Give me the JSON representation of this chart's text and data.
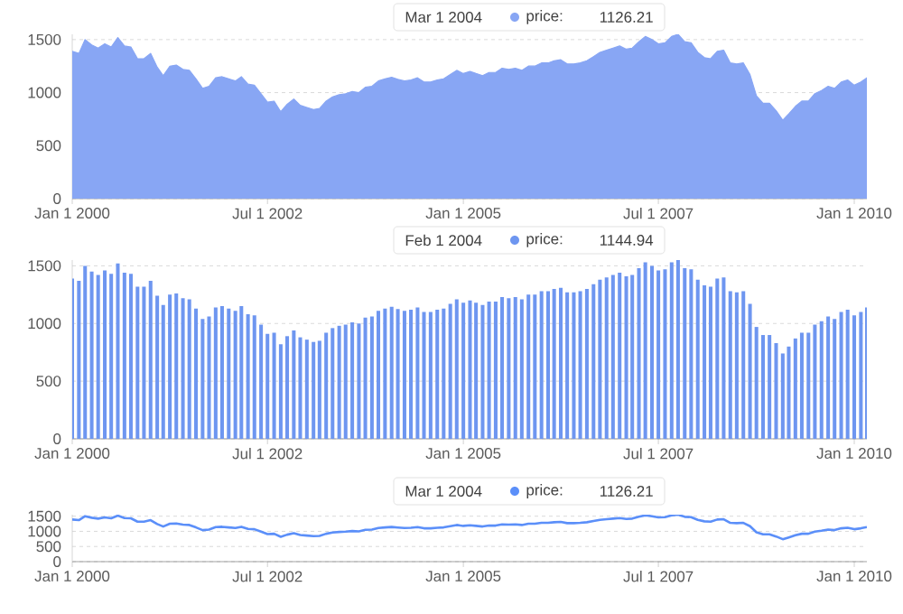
{
  "chart_data": [
    {
      "type": "area",
      "x": [
        "2000-01",
        "2000-02",
        "2000-03",
        "2000-04",
        "2000-05",
        "2000-06",
        "2000-07",
        "2000-08",
        "2000-09",
        "2000-10",
        "2000-11",
        "2000-12",
        "2001-01",
        "2001-02",
        "2001-03",
        "2001-04",
        "2001-05",
        "2001-06",
        "2001-07",
        "2001-08",
        "2001-09",
        "2001-10",
        "2001-11",
        "2001-12",
        "2002-01",
        "2002-02",
        "2002-03",
        "2002-04",
        "2002-05",
        "2002-06",
        "2002-07",
        "2002-08",
        "2002-09",
        "2002-10",
        "2002-11",
        "2002-12",
        "2003-01",
        "2003-02",
        "2003-03",
        "2003-04",
        "2003-05",
        "2003-06",
        "2003-07",
        "2003-08",
        "2003-09",
        "2003-10",
        "2003-11",
        "2003-12",
        "2004-01",
        "2004-02",
        "2004-03",
        "2004-04",
        "2004-05",
        "2004-06",
        "2004-07",
        "2004-08",
        "2004-09",
        "2004-10",
        "2004-11",
        "2004-12",
        "2005-01",
        "2005-02",
        "2005-03",
        "2005-04",
        "2005-05",
        "2005-06",
        "2005-07",
        "2005-08",
        "2005-09",
        "2005-10",
        "2005-11",
        "2005-12",
        "2006-01",
        "2006-02",
        "2006-03",
        "2006-04",
        "2006-05",
        "2006-06",
        "2006-07",
        "2006-08",
        "2006-09",
        "2006-10",
        "2006-11",
        "2006-12",
        "2007-01",
        "2007-02",
        "2007-03",
        "2007-04",
        "2007-05",
        "2007-06",
        "2007-07",
        "2007-08",
        "2007-09",
        "2007-10",
        "2007-11",
        "2007-12",
        "2008-01",
        "2008-02",
        "2008-03",
        "2008-04",
        "2008-05",
        "2008-06",
        "2008-07",
        "2008-08",
        "2008-09",
        "2008-10",
        "2008-11",
        "2008-12",
        "2009-01",
        "2009-02",
        "2009-03",
        "2009-04",
        "2009-05",
        "2009-06",
        "2009-07",
        "2009-08",
        "2009-09",
        "2009-10",
        "2009-11",
        "2009-12",
        "2010-01",
        "2010-02",
        "2010-03"
      ],
      "series": [
        {
          "name": "price:",
          "color": "#88a6f4",
          "values": [
            1390,
            1370,
            1500,
            1450,
            1420,
            1460,
            1430,
            1520,
            1440,
            1430,
            1320,
            1320,
            1370,
            1240,
            1160,
            1250,
            1260,
            1220,
            1210,
            1130,
            1040,
            1060,
            1140,
            1150,
            1130,
            1110,
            1150,
            1080,
            1070,
            990,
            910,
            920,
            820,
            890,
            940,
            880,
            860,
            840,
            850,
            920,
            960,
            980,
            990,
            1010,
            1000,
            1050,
            1060,
            1110,
            1130,
            1144.94,
            1126.21,
            1110,
            1120,
            1140,
            1100,
            1100,
            1120,
            1130,
            1170,
            1210,
            1180,
            1200,
            1180,
            1160,
            1190,
            1190,
            1230,
            1220,
            1230,
            1210,
            1250,
            1250,
            1280,
            1280,
            1300,
            1310,
            1270,
            1270,
            1280,
            1300,
            1340,
            1380,
            1400,
            1420,
            1440,
            1410,
            1420,
            1480,
            1530,
            1500,
            1460,
            1470,
            1530,
            1550,
            1480,
            1470,
            1380,
            1330,
            1320,
            1390,
            1400,
            1280,
            1270,
            1280,
            1170,
            970,
            900,
            900,
            830,
            740,
            800,
            870,
            920,
            920,
            990,
            1020,
            1060,
            1040,
            1100,
            1120,
            1070,
            1100,
            1140
          ]
        }
      ],
      "xlim": [
        "2000-01-01",
        "2010-03-01"
      ],
      "xticks": [
        {
          "value": "2000-01-01",
          "label": "Jan 1 2000"
        },
        {
          "value": "2002-07-01",
          "label": "Jul 1 2002"
        },
        {
          "value": "2005-01-01",
          "label": "Jan 1 2005"
        },
        {
          "value": "2007-07-01",
          "label": "Jul 1 2007"
        },
        {
          "value": "2010-01-01",
          "label": "Jan 1 2010"
        }
      ],
      "ylim": [
        0,
        1550
      ],
      "yticks": [
        0,
        500,
        1000,
        1500
      ],
      "grid": "y",
      "annotations": [
        "Mar 1 2004",
        "1126.21"
      ]
    },
    {
      "type": "bar",
      "x": [
        "2000-01",
        "2000-02",
        "2000-03",
        "2000-04",
        "2000-05",
        "2000-06",
        "2000-07",
        "2000-08",
        "2000-09",
        "2000-10",
        "2000-11",
        "2000-12",
        "2001-01",
        "2001-02",
        "2001-03",
        "2001-04",
        "2001-05",
        "2001-06",
        "2001-07",
        "2001-08",
        "2001-09",
        "2001-10",
        "2001-11",
        "2001-12",
        "2002-01",
        "2002-02",
        "2002-03",
        "2002-04",
        "2002-05",
        "2002-06",
        "2002-07",
        "2002-08",
        "2002-09",
        "2002-10",
        "2002-11",
        "2002-12",
        "2003-01",
        "2003-02",
        "2003-03",
        "2003-04",
        "2003-05",
        "2003-06",
        "2003-07",
        "2003-08",
        "2003-09",
        "2003-10",
        "2003-11",
        "2003-12",
        "2004-01",
        "2004-02",
        "2004-03",
        "2004-04",
        "2004-05",
        "2004-06",
        "2004-07",
        "2004-08",
        "2004-09",
        "2004-10",
        "2004-11",
        "2004-12",
        "2005-01",
        "2005-02",
        "2005-03",
        "2005-04",
        "2005-05",
        "2005-06",
        "2005-07",
        "2005-08",
        "2005-09",
        "2005-10",
        "2005-11",
        "2005-12",
        "2006-01",
        "2006-02",
        "2006-03",
        "2006-04",
        "2006-05",
        "2006-06",
        "2006-07",
        "2006-08",
        "2006-09",
        "2006-10",
        "2006-11",
        "2006-12",
        "2007-01",
        "2007-02",
        "2007-03",
        "2007-04",
        "2007-05",
        "2007-06",
        "2007-07",
        "2007-08",
        "2007-09",
        "2007-10",
        "2007-11",
        "2007-12",
        "2008-01",
        "2008-02",
        "2008-03",
        "2008-04",
        "2008-05",
        "2008-06",
        "2008-07",
        "2008-08",
        "2008-09",
        "2008-10",
        "2008-11",
        "2008-12",
        "2009-01",
        "2009-02",
        "2009-03",
        "2009-04",
        "2009-05",
        "2009-06",
        "2009-07",
        "2009-08",
        "2009-09",
        "2009-10",
        "2009-11",
        "2009-12",
        "2010-01",
        "2010-02",
        "2010-03"
      ],
      "series": [
        {
          "name": "price:",
          "color": "#6e96f0",
          "values": [
            1390,
            1370,
            1500,
            1450,
            1420,
            1460,
            1430,
            1520,
            1440,
            1430,
            1320,
            1320,
            1370,
            1240,
            1160,
            1250,
            1260,
            1220,
            1210,
            1130,
            1040,
            1060,
            1140,
            1150,
            1130,
            1110,
            1150,
            1080,
            1070,
            990,
            910,
            920,
            820,
            890,
            940,
            880,
            860,
            840,
            850,
            920,
            960,
            980,
            990,
            1010,
            1000,
            1050,
            1060,
            1110,
            1130,
            1144.94,
            1126.21,
            1110,
            1120,
            1140,
            1100,
            1100,
            1120,
            1130,
            1170,
            1210,
            1180,
            1200,
            1180,
            1160,
            1190,
            1190,
            1230,
            1220,
            1230,
            1210,
            1250,
            1250,
            1280,
            1280,
            1300,
            1310,
            1270,
            1270,
            1280,
            1300,
            1340,
            1380,
            1400,
            1420,
            1440,
            1410,
            1420,
            1480,
            1530,
            1500,
            1460,
            1470,
            1530,
            1550,
            1480,
            1470,
            1380,
            1330,
            1320,
            1390,
            1400,
            1280,
            1270,
            1280,
            1170,
            970,
            900,
            900,
            830,
            740,
            800,
            870,
            920,
            920,
            990,
            1020,
            1060,
            1040,
            1100,
            1120,
            1070,
            1100,
            1140
          ]
        }
      ],
      "xlim": [
        "2000-01-01",
        "2010-03-01"
      ],
      "xticks": [
        {
          "value": "2000-01-01",
          "label": "Jan 1 2000"
        },
        {
          "value": "2002-07-01",
          "label": "Jul 1 2002"
        },
        {
          "value": "2005-01-01",
          "label": "Jan 1 2005"
        },
        {
          "value": "2007-07-01",
          "label": "Jul 1 2007"
        },
        {
          "value": "2010-01-01",
          "label": "Jan 1 2010"
        }
      ],
      "ylim": [
        0,
        1550
      ],
      "yticks": [
        0,
        500,
        1000,
        1500
      ],
      "grid": "y",
      "annotations": [
        "Feb 1 2004",
        "1144.94"
      ]
    },
    {
      "type": "line",
      "x": [
        "2000-01",
        "2000-02",
        "2000-03",
        "2000-04",
        "2000-05",
        "2000-06",
        "2000-07",
        "2000-08",
        "2000-09",
        "2000-10",
        "2000-11",
        "2000-12",
        "2001-01",
        "2001-02",
        "2001-03",
        "2001-04",
        "2001-05",
        "2001-06",
        "2001-07",
        "2001-08",
        "2001-09",
        "2001-10",
        "2001-11",
        "2001-12",
        "2002-01",
        "2002-02",
        "2002-03",
        "2002-04",
        "2002-05",
        "2002-06",
        "2002-07",
        "2002-08",
        "2002-09",
        "2002-10",
        "2002-11",
        "2002-12",
        "2003-01",
        "2003-02",
        "2003-03",
        "2003-04",
        "2003-05",
        "2003-06",
        "2003-07",
        "2003-08",
        "2003-09",
        "2003-10",
        "2003-11",
        "2003-12",
        "2004-01",
        "2004-02",
        "2004-03",
        "2004-04",
        "2004-05",
        "2004-06",
        "2004-07",
        "2004-08",
        "2004-09",
        "2004-10",
        "2004-11",
        "2004-12",
        "2005-01",
        "2005-02",
        "2005-03",
        "2005-04",
        "2005-05",
        "2005-06",
        "2005-07",
        "2005-08",
        "2005-09",
        "2005-10",
        "2005-11",
        "2005-12",
        "2006-01",
        "2006-02",
        "2006-03",
        "2006-04",
        "2006-05",
        "2006-06",
        "2006-07",
        "2006-08",
        "2006-09",
        "2006-10",
        "2006-11",
        "2006-12",
        "2007-01",
        "2007-02",
        "2007-03",
        "2007-04",
        "2007-05",
        "2007-06",
        "2007-07",
        "2007-08",
        "2007-09",
        "2007-10",
        "2007-11",
        "2007-12",
        "2008-01",
        "2008-02",
        "2008-03",
        "2008-04",
        "2008-05",
        "2008-06",
        "2008-07",
        "2008-08",
        "2008-09",
        "2008-10",
        "2008-11",
        "2008-12",
        "2009-01",
        "2009-02",
        "2009-03",
        "2009-04",
        "2009-05",
        "2009-06",
        "2009-07",
        "2009-08",
        "2009-09",
        "2009-10",
        "2009-11",
        "2009-12",
        "2010-01",
        "2010-02",
        "2010-03"
      ],
      "series": [
        {
          "name": "price:",
          "color": "#5b8ff9",
          "values": [
            1390,
            1370,
            1500,
            1450,
            1420,
            1460,
            1430,
            1520,
            1440,
            1430,
            1320,
            1320,
            1370,
            1240,
            1160,
            1250,
            1260,
            1220,
            1210,
            1130,
            1040,
            1060,
            1140,
            1150,
            1130,
            1110,
            1150,
            1080,
            1070,
            990,
            910,
            920,
            820,
            890,
            940,
            880,
            860,
            840,
            850,
            920,
            960,
            980,
            990,
            1010,
            1000,
            1050,
            1060,
            1110,
            1130,
            1144.94,
            1126.21,
            1110,
            1120,
            1140,
            1100,
            1100,
            1120,
            1130,
            1170,
            1210,
            1180,
            1200,
            1180,
            1160,
            1190,
            1190,
            1230,
            1220,
            1230,
            1210,
            1250,
            1250,
            1280,
            1280,
            1300,
            1310,
            1270,
            1270,
            1280,
            1300,
            1340,
            1380,
            1400,
            1420,
            1440,
            1410,
            1420,
            1480,
            1530,
            1500,
            1460,
            1470,
            1530,
            1550,
            1480,
            1470,
            1380,
            1330,
            1320,
            1390,
            1400,
            1280,
            1270,
            1280,
            1170,
            970,
            900,
            900,
            830,
            740,
            800,
            870,
            920,
            920,
            990,
            1020,
            1060,
            1040,
            1100,
            1120,
            1070,
            1100,
            1140
          ]
        }
      ],
      "xlim": [
        "2000-01-01",
        "2010-03-01"
      ],
      "xticks": [
        {
          "value": "2000-01-01",
          "label": "Jan 1 2000"
        },
        {
          "value": "2002-07-01",
          "label": "Jul 1 2002"
        },
        {
          "value": "2005-01-01",
          "label": "Jan 1 2005"
        },
        {
          "value": "2007-07-01",
          "label": "Jul 1 2007"
        },
        {
          "value": "2010-01-01",
          "label": "Jan 1 2010"
        }
      ],
      "ylim": [
        0,
        1550
      ],
      "yticks": [
        0,
        500,
        1000,
        1500
      ],
      "grid": "y",
      "annotations": [
        "Mar 1 2004",
        "1126.21"
      ]
    }
  ]
}
